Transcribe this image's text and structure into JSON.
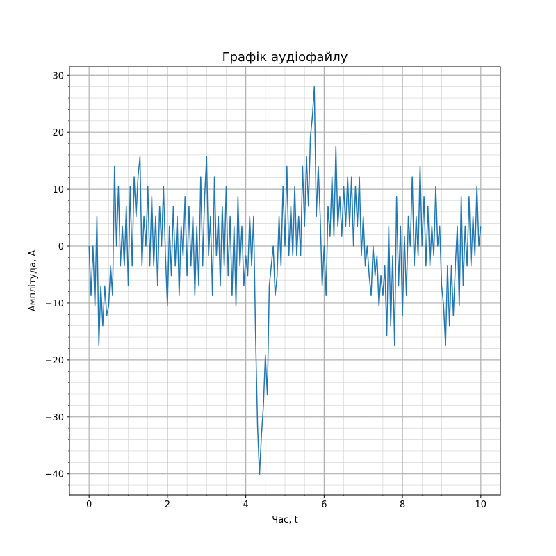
{
  "chart_data": {
    "type": "line",
    "title": "Графік аудіофайлу",
    "x_label": "Час, t",
    "y_label": "Амплітуда, A",
    "xlim": [
      -0.5,
      10.5
    ],
    "ylim": [
      -43.7,
      31.5
    ],
    "xticks": [
      0,
      2,
      4,
      6,
      8,
      10
    ],
    "yticks": [
      {
        "value": -40,
        "label": "−40"
      },
      {
        "value": -30,
        "label": "−30"
      },
      {
        "value": -20,
        "label": "−20"
      },
      {
        "value": -10,
        "label": "−10"
      },
      0,
      10,
      20,
      30
    ],
    "x_minor_ticks": [
      -0.5,
      0.5,
      1,
      1.5,
      2.5,
      3,
      3.5,
      4.5,
      5,
      5.5,
      6.5,
      7,
      7.5,
      8.5,
      9,
      9.5,
      10.5
    ],
    "y_minor_ticks": [
      -42,
      -38,
      -36,
      -34,
      -32,
      -28,
      -26,
      -24,
      -22,
      -18,
      -16,
      -14,
      -12,
      -8,
      -6,
      -4,
      -2,
      2,
      4,
      6,
      8,
      12,
      14,
      16,
      18,
      22,
      24,
      26,
      28
    ],
    "grid": true,
    "series": [
      {
        "color": "#1f77b4",
        "x": [
          0,
          0.05,
          0.1,
          0.15,
          0.2,
          0.25,
          0.3,
          0.35,
          0.4,
          0.45,
          0.5,
          0.55,
          0.6,
          0.65,
          0.7,
          0.75,
          0.8,
          0.85,
          0.9,
          0.95,
          1,
          1.05,
          1.1,
          1.15,
          1.2,
          1.25,
          1.3,
          1.35,
          1.4,
          1.45,
          1.5,
          1.55,
          1.6,
          1.65,
          1.7,
          1.75,
          1.8,
          1.85,
          1.9,
          1.95,
          2,
          2.05,
          2.1,
          2.15,
          2.2,
          2.25,
          2.3,
          2.35,
          2.4,
          2.45,
          2.5,
          2.55,
          2.6,
          2.65,
          2.7,
          2.75,
          2.8,
          2.85,
          2.9,
          2.95,
          3,
          3.05,
          3.1,
          3.15,
          3.2,
          3.25,
          3.3,
          3.35,
          3.4,
          3.45,
          3.5,
          3.55,
          3.6,
          3.65,
          3.7,
          3.75,
          3.8,
          3.85,
          3.9,
          3.95,
          4,
          4.05,
          4.1,
          4.15,
          4.2,
          4.25,
          4.3,
          4.35,
          4.4,
          4.45,
          4.5,
          4.55,
          4.6,
          4.65,
          4.7,
          4.75,
          4.8,
          4.85,
          4.9,
          4.95,
          5,
          5.05,
          5.1,
          5.15,
          5.2,
          5.25,
          5.3,
          5.35,
          5.4,
          5.45,
          5.5,
          5.55,
          5.6,
          5.65,
          5.7,
          5.75,
          5.8,
          5.85,
          5.9,
          5.95,
          6,
          6.05,
          6.1,
          6.15,
          6.2,
          6.25,
          6.3,
          6.35,
          6.4,
          6.45,
          6.5,
          6.55,
          6.6,
          6.65,
          6.7,
          6.75,
          6.8,
          6.85,
          6.9,
          6.95,
          7,
          7.05,
          7.1,
          7.15,
          7.2,
          7.25,
          7.3,
          7.35,
          7.4,
          7.45,
          7.5,
          7.55,
          7.6,
          7.65,
          7.7,
          7.75,
          7.8,
          7.85,
          7.9,
          7.95,
          8,
          8.05,
          8.1,
          8.15,
          8.2,
          8.25,
          8.3,
          8.35,
          8.4,
          8.45,
          8.5,
          8.55,
          8.6,
          8.65,
          8.7,
          8.75,
          8.8,
          8.85,
          8.9,
          8.95,
          9,
          9.05,
          9.1,
          9.15,
          9.2,
          9.25,
          9.3,
          9.35,
          9.4,
          9.45,
          9.5,
          9.55,
          9.6,
          9.65,
          9.7,
          9.75,
          9.8,
          9.85,
          9.9,
          9.95,
          10
        ],
        "values": [
          0,
          -8.7,
          0,
          -10.5,
          5.2,
          -17.5,
          -7,
          -14,
          -7,
          -12.2,
          -10.5,
          -3.5,
          -8.7,
          14,
          0,
          10.5,
          -3.5,
          3.5,
          -3.5,
          7,
          -7,
          10.5,
          -3.5,
          12.2,
          5.2,
          12.2,
          15.7,
          -3.5,
          5.2,
          0,
          10.5,
          -3.5,
          8.7,
          -3.5,
          5.2,
          -7,
          7,
          0,
          10.5,
          -1.7,
          -10.5,
          3.5,
          -5.2,
          7,
          -3.5,
          5.2,
          -8.7,
          3.5,
          -1.7,
          8.7,
          -5.2,
          7,
          -3.5,
          5.2,
          -8.7,
          3.5,
          -7,
          12.2,
          -3.5,
          8.7,
          15.7,
          -1.7,
          5.2,
          -8.7,
          12.2,
          -1.7,
          5.2,
          -7,
          7,
          -3.5,
          10.5,
          -5.2,
          5.2,
          -8.7,
          3.5,
          -10.5,
          8.7,
          -3.5,
          3.5,
          -7,
          -1.7,
          -5.2,
          5.2,
          -3.5,
          5.2,
          -15.7,
          -31.5,
          -40.2,
          -33.2,
          -28,
          -19.2,
          -26.2,
          -7,
          -3.5,
          0,
          -8.7,
          -5.2,
          5.2,
          -3.5,
          10.5,
          0,
          14,
          -1.7,
          7,
          -1.7,
          10.5,
          -1.7,
          5.2,
          -1.7,
          14,
          3.5,
          15.7,
          7,
          19.2,
          22.7,
          28,
          5.2,
          14,
          5.2,
          -7,
          0,
          -8.7,
          7,
          1.7,
          12.2,
          1.7,
          17.5,
          3.5,
          8.7,
          1.7,
          10.5,
          3.5,
          12.2,
          3.5,
          12.2,
          0,
          10.5,
          3.5,
          12.2,
          -1.7,
          5.2,
          -3.5,
          0,
          -5.2,
          -8.7,
          0,
          -5.2,
          -1.7,
          -10.5,
          -5.2,
          -8.7,
          -3.5,
          -15.7,
          3.5,
          -14,
          -1.7,
          -17.5,
          8.7,
          -7,
          3.5,
          -12.2,
          1.7,
          -8.7,
          5.2,
          0,
          12.2,
          -3.5,
          5.2,
          -1.7,
          14,
          0,
          8.7,
          -3.5,
          7,
          -3.5,
          3.5,
          -1.7,
          10.5,
          0,
          3.5,
          -7,
          -10.5,
          -17.5,
          -3.5,
          -14,
          -3.5,
          -12.2,
          -3.5,
          3.5,
          -10.5,
          8.7,
          -7,
          3.5,
          -3.5,
          8.7,
          -3.5,
          5.2,
          -1.7,
          10.5,
          0,
          3.5
        ]
      }
    ]
  }
}
